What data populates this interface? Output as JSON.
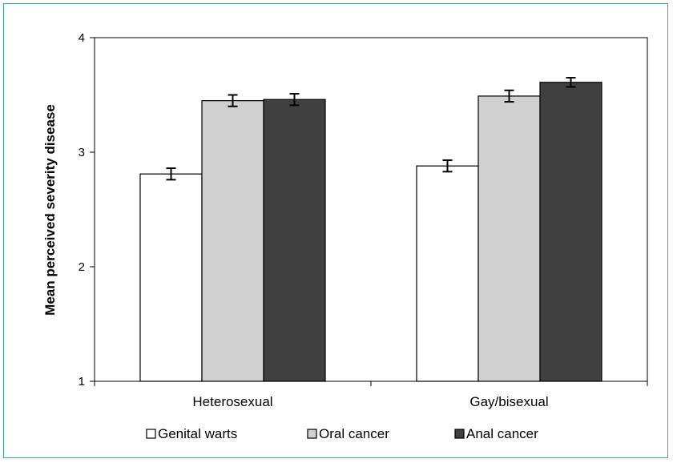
{
  "chart_data": {
    "type": "bar",
    "ylabel": "Mean perceived severity disease",
    "xlabel": "",
    "ylim": [
      1,
      4
    ],
    "yticks": [
      1,
      2,
      3,
      4
    ],
    "categories": [
      "Heterosexual",
      "Gay/bisexual"
    ],
    "series": [
      {
        "name": "Genital warts",
        "values": [
          2.81,
          2.88
        ],
        "errors": [
          0.05,
          0.05
        ],
        "color": "#ffffff"
      },
      {
        "name": "Oral cancer",
        "values": [
          3.45,
          3.49
        ],
        "errors": [
          0.05,
          0.05
        ],
        "color": "#d0d0d0"
      },
      {
        "name": "Anal cancer",
        "values": [
          3.46,
          3.61
        ],
        "errors": [
          0.05,
          0.04
        ],
        "color": "#404040"
      }
    ],
    "legend_position": "bottom",
    "grid": false
  }
}
